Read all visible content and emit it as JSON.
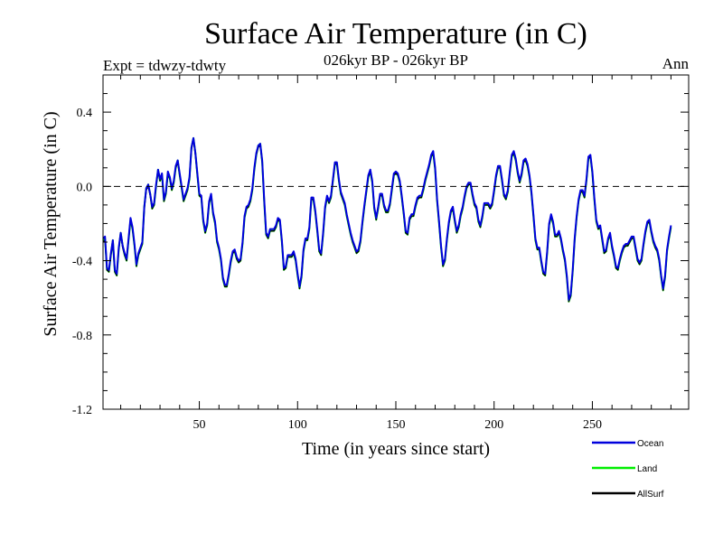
{
  "chart_data": {
    "type": "line",
    "title": "Surface Air Temperature (in C)",
    "subtitle_left": "Expt = tdwzy-tdwty",
    "subtitle_center": "026kyr BP - 026kyr BP",
    "subtitle_right": "Ann",
    "xlabel": "Time (in years since start)",
    "ylabel": "Surface Air Temperature (in C)",
    "xlim": [
      1,
      299
    ],
    "ylim": [
      -1.2,
      0.6
    ],
    "x_ticks": [
      50,
      100,
      150,
      200,
      250
    ],
    "y_ticks": [
      -1.2,
      -0.8,
      -0.4,
      0.0,
      0.4
    ],
    "y_tick_labels": [
      "-1.2",
      "-0.8",
      "-0.4",
      "0.0",
      "0.4"
    ],
    "reference_line": 0.0,
    "legend_position": "bottom-right",
    "series": [
      {
        "name": "Land",
        "color": "#00ee00",
        "x_start": 1,
        "x_step": 1,
        "values": [
          -0.29,
          -0.28,
          -0.45,
          -0.46,
          -0.37,
          -0.29,
          -0.46,
          -0.48,
          -0.34,
          -0.25,
          -0.32,
          -0.37,
          -0.4,
          -0.29,
          -0.18,
          -0.23,
          -0.32,
          -0.43,
          -0.37,
          -0.34,
          -0.31,
          -0.11,
          -0.01,
          0.01,
          -0.04,
          -0.12,
          -0.1,
          0.0,
          0.09,
          0.03,
          0.06,
          -0.08,
          -0.04,
          0.07,
          0.04,
          -0.02,
          0.02,
          0.1,
          0.14,
          0.06,
          -0.01,
          -0.08,
          -0.05,
          -0.02,
          0.04,
          0.21,
          0.26,
          0.18,
          0.06,
          -0.05,
          -0.06,
          -0.19,
          -0.25,
          -0.21,
          -0.09,
          -0.05,
          -0.15,
          -0.2,
          -0.3,
          -0.34,
          -0.4,
          -0.5,
          -0.54,
          -0.54,
          -0.48,
          -0.41,
          -0.36,
          -0.35,
          -0.39,
          -0.41,
          -0.4,
          -0.31,
          -0.17,
          -0.12,
          -0.11,
          -0.08,
          -0.02,
          0.09,
          0.17,
          0.22,
          0.23,
          0.13,
          -0.08,
          -0.26,
          -0.28,
          -0.24,
          -0.24,
          -0.24,
          -0.22,
          -0.18,
          -0.19,
          -0.3,
          -0.45,
          -0.44,
          -0.38,
          -0.38,
          -0.38,
          -0.36,
          -0.4,
          -0.48,
          -0.55,
          -0.49,
          -0.35,
          -0.29,
          -0.29,
          -0.23,
          -0.07,
          -0.07,
          -0.14,
          -0.24,
          -0.35,
          -0.37,
          -0.26,
          -0.12,
          -0.06,
          -0.09,
          -0.06,
          0.03,
          0.12,
          0.12,
          0.03,
          -0.04,
          -0.07,
          -0.1,
          -0.16,
          -0.21,
          -0.26,
          -0.3,
          -0.33,
          -0.36,
          -0.35,
          -0.3,
          -0.2,
          -0.11,
          -0.03,
          0.05,
          0.08,
          0.02,
          -0.12,
          -0.18,
          -0.12,
          -0.05,
          -0.05,
          -0.11,
          -0.14,
          -0.14,
          -0.1,
          -0.02,
          0.06,
          0.07,
          0.06,
          0.02,
          -0.06,
          -0.15,
          -0.25,
          -0.26,
          -0.18,
          -0.16,
          -0.16,
          -0.11,
          -0.07,
          -0.06,
          -0.06,
          -0.02,
          0.03,
          0.07,
          0.11,
          0.16,
          0.18,
          0.09,
          -0.08,
          -0.2,
          -0.33,
          -0.43,
          -0.4,
          -0.29,
          -0.2,
          -0.14,
          -0.12,
          -0.19,
          -0.25,
          -0.22,
          -0.16,
          -0.12,
          -0.06,
          -0.01,
          0.01,
          0.01,
          -0.05,
          -0.1,
          -0.12,
          -0.19,
          -0.22,
          -0.17,
          -0.1,
          -0.1,
          -0.1,
          -0.12,
          -0.1,
          -0.03,
          0.05,
          0.1,
          0.1,
          0.03,
          -0.05,
          -0.07,
          -0.03,
          0.07,
          0.16,
          0.18,
          0.14,
          0.07,
          0.02,
          0.06,
          0.13,
          0.14,
          0.11,
          0.05,
          -0.04,
          -0.16,
          -0.29,
          -0.34,
          -0.34,
          -0.41,
          -0.47,
          -0.48,
          -0.36,
          -0.21,
          -0.16,
          -0.2,
          -0.27,
          -0.27,
          -0.25,
          -0.29,
          -0.35,
          -0.4,
          -0.49,
          -0.62,
          -0.59,
          -0.46,
          -0.29,
          -0.17,
          -0.08,
          -0.03,
          -0.03,
          -0.06,
          0.03,
          0.15,
          0.16,
          0.07,
          -0.07,
          -0.19,
          -0.23,
          -0.22,
          -0.29,
          -0.36,
          -0.35,
          -0.29,
          -0.26,
          -0.33,
          -0.38,
          -0.44,
          -0.45,
          -0.4,
          -0.36,
          -0.33,
          -0.32,
          -0.32,
          -0.3,
          -0.28,
          -0.28,
          -0.34,
          -0.4,
          -0.42,
          -0.4,
          -0.32,
          -0.25,
          -0.2,
          -0.19,
          -0.25,
          -0.3,
          -0.33,
          -0.35,
          -0.4,
          -0.49,
          -0.56,
          -0.49,
          -0.35,
          -0.28,
          -0.22
        ]
      },
      {
        "name": "AllSurf",
        "color": "#000000",
        "x_start": 1,
        "x_step": 1,
        "values": [
          -0.3,
          -0.29,
          -0.45,
          -0.46,
          -0.37,
          -0.3,
          -0.46,
          -0.48,
          -0.34,
          -0.26,
          -0.33,
          -0.37,
          -0.4,
          -0.29,
          -0.18,
          -0.23,
          -0.32,
          -0.43,
          -0.37,
          -0.34,
          -0.31,
          -0.12,
          -0.02,
          0.0,
          -0.05,
          -0.12,
          -0.1,
          0.0,
          0.08,
          0.03,
          0.06,
          -0.08,
          -0.04,
          0.07,
          0.04,
          -0.02,
          0.02,
          0.1,
          0.13,
          0.06,
          -0.01,
          -0.08,
          -0.05,
          -0.02,
          0.04,
          0.2,
          0.25,
          0.17,
          0.06,
          -0.05,
          -0.06,
          -0.19,
          -0.25,
          -0.21,
          -0.09,
          -0.05,
          -0.15,
          -0.2,
          -0.3,
          -0.34,
          -0.4,
          -0.5,
          -0.54,
          -0.54,
          -0.48,
          -0.41,
          -0.36,
          -0.35,
          -0.39,
          -0.41,
          -0.4,
          -0.31,
          -0.17,
          -0.12,
          -0.11,
          -0.08,
          -0.02,
          0.09,
          0.17,
          0.21,
          0.22,
          0.13,
          -0.08,
          -0.26,
          -0.28,
          -0.24,
          -0.24,
          -0.24,
          -0.22,
          -0.18,
          -0.19,
          -0.3,
          -0.45,
          -0.44,
          -0.38,
          -0.38,
          -0.38,
          -0.36,
          -0.4,
          -0.48,
          -0.55,
          -0.49,
          -0.35,
          -0.29,
          -0.29,
          -0.23,
          -0.07,
          -0.07,
          -0.14,
          -0.24,
          -0.35,
          -0.37,
          -0.26,
          -0.12,
          -0.06,
          -0.09,
          -0.06,
          0.03,
          0.12,
          0.12,
          0.03,
          -0.04,
          -0.07,
          -0.1,
          -0.16,
          -0.21,
          -0.26,
          -0.3,
          -0.33,
          -0.36,
          -0.35,
          -0.3,
          -0.2,
          -0.11,
          -0.03,
          0.05,
          0.08,
          0.02,
          -0.12,
          -0.18,
          -0.12,
          -0.05,
          -0.05,
          -0.11,
          -0.14,
          -0.14,
          -0.1,
          -0.02,
          0.06,
          0.07,
          0.06,
          0.02,
          -0.06,
          -0.15,
          -0.25,
          -0.26,
          -0.18,
          -0.16,
          -0.16,
          -0.11,
          -0.07,
          -0.06,
          -0.06,
          -0.02,
          0.03,
          0.07,
          0.11,
          0.16,
          0.18,
          0.09,
          -0.08,
          -0.2,
          -0.33,
          -0.43,
          -0.4,
          -0.29,
          -0.2,
          -0.14,
          -0.12,
          -0.19,
          -0.25,
          -0.22,
          -0.16,
          -0.12,
          -0.06,
          -0.01,
          0.01,
          0.01,
          -0.05,
          -0.1,
          -0.12,
          -0.19,
          -0.22,
          -0.17,
          -0.1,
          -0.1,
          -0.1,
          -0.12,
          -0.1,
          -0.03,
          0.05,
          0.1,
          0.1,
          0.03,
          -0.05,
          -0.07,
          -0.03,
          0.07,
          0.16,
          0.18,
          0.14,
          0.07,
          0.02,
          0.06,
          0.13,
          0.14,
          0.11,
          0.05,
          -0.04,
          -0.16,
          -0.29,
          -0.34,
          -0.34,
          -0.41,
          -0.47,
          -0.48,
          -0.36,
          -0.21,
          -0.16,
          -0.2,
          -0.27,
          -0.27,
          -0.25,
          -0.29,
          -0.35,
          -0.4,
          -0.49,
          -0.62,
          -0.59,
          -0.46,
          -0.29,
          -0.17,
          -0.08,
          -0.03,
          -0.03,
          -0.06,
          0.03,
          0.15,
          0.16,
          0.07,
          -0.07,
          -0.19,
          -0.23,
          -0.22,
          -0.29,
          -0.36,
          -0.35,
          -0.29,
          -0.26,
          -0.33,
          -0.38,
          -0.44,
          -0.45,
          -0.4,
          -0.36,
          -0.33,
          -0.32,
          -0.32,
          -0.3,
          -0.28,
          -0.28,
          -0.34,
          -0.4,
          -0.42,
          -0.4,
          -0.32,
          -0.25,
          -0.2,
          -0.19,
          -0.25,
          -0.3,
          -0.33,
          -0.35,
          -0.4,
          -0.49,
          -0.56,
          -0.49,
          -0.35,
          -0.28,
          -0.22
        ]
      },
      {
        "name": "Ocean",
        "color": "#0000dd",
        "x_start": 1,
        "x_step": 1,
        "values": [
          -0.28,
          -0.27,
          -0.44,
          -0.45,
          -0.36,
          -0.29,
          -0.45,
          -0.47,
          -0.33,
          -0.25,
          -0.32,
          -0.36,
          -0.39,
          -0.28,
          -0.17,
          -0.22,
          -0.31,
          -0.42,
          -0.36,
          -0.33,
          -0.3,
          -0.11,
          -0.01,
          0.01,
          -0.04,
          -0.11,
          -0.09,
          0.01,
          0.09,
          0.04,
          0.07,
          -0.07,
          -0.03,
          0.08,
          0.05,
          -0.01,
          0.03,
          0.11,
          0.14,
          0.07,
          0.0,
          -0.07,
          -0.04,
          -0.01,
          0.05,
          0.21,
          0.26,
          0.18,
          0.07,
          -0.04,
          -0.05,
          -0.18,
          -0.24,
          -0.2,
          -0.08,
          -0.04,
          -0.14,
          -0.19,
          -0.29,
          -0.33,
          -0.39,
          -0.49,
          -0.53,
          -0.53,
          -0.47,
          -0.4,
          -0.35,
          -0.34,
          -0.38,
          -0.4,
          -0.39,
          -0.3,
          -0.16,
          -0.11,
          -0.1,
          -0.07,
          -0.01,
          0.1,
          0.18,
          0.22,
          0.23,
          0.14,
          -0.07,
          -0.25,
          -0.27,
          -0.23,
          -0.23,
          -0.23,
          -0.21,
          -0.17,
          -0.18,
          -0.29,
          -0.44,
          -0.43,
          -0.37,
          -0.37,
          -0.37,
          -0.35,
          -0.39,
          -0.47,
          -0.54,
          -0.48,
          -0.34,
          -0.28,
          -0.28,
          -0.22,
          -0.06,
          -0.06,
          -0.13,
          -0.23,
          -0.34,
          -0.36,
          -0.25,
          -0.11,
          -0.05,
          -0.08,
          -0.05,
          0.04,
          0.13,
          0.13,
          0.04,
          -0.03,
          -0.06,
          -0.09,
          -0.15,
          -0.2,
          -0.25,
          -0.29,
          -0.32,
          -0.35,
          -0.34,
          -0.29,
          -0.19,
          -0.1,
          -0.02,
          0.06,
          0.09,
          0.03,
          -0.11,
          -0.17,
          -0.11,
          -0.04,
          -0.04,
          -0.1,
          -0.13,
          -0.13,
          -0.09,
          -0.01,
          0.07,
          0.08,
          0.07,
          0.03,
          -0.05,
          -0.14,
          -0.24,
          -0.25,
          -0.17,
          -0.15,
          -0.15,
          -0.1,
          -0.06,
          -0.05,
          -0.05,
          -0.01,
          0.04,
          0.08,
          0.12,
          0.17,
          0.19,
          0.1,
          -0.07,
          -0.19,
          -0.32,
          -0.42,
          -0.39,
          -0.28,
          -0.19,
          -0.13,
          -0.11,
          -0.18,
          -0.24,
          -0.21,
          -0.15,
          -0.11,
          -0.05,
          0.0,
          0.02,
          0.02,
          -0.04,
          -0.09,
          -0.11,
          -0.18,
          -0.21,
          -0.16,
          -0.09,
          -0.09,
          -0.09,
          -0.11,
          -0.09,
          -0.02,
          0.06,
          0.11,
          0.11,
          0.04,
          -0.04,
          -0.06,
          -0.02,
          0.08,
          0.17,
          0.19,
          0.15,
          0.08,
          0.03,
          0.07,
          0.14,
          0.15,
          0.12,
          0.06,
          -0.03,
          -0.15,
          -0.28,
          -0.33,
          -0.33,
          -0.4,
          -0.46,
          -0.47,
          -0.35,
          -0.2,
          -0.15,
          -0.19,
          -0.26,
          -0.26,
          -0.24,
          -0.28,
          -0.34,
          -0.39,
          -0.48,
          -0.61,
          -0.58,
          -0.45,
          -0.28,
          -0.16,
          -0.07,
          -0.02,
          -0.02,
          -0.05,
          0.04,
          0.16,
          0.17,
          0.08,
          -0.06,
          -0.18,
          -0.22,
          -0.21,
          -0.28,
          -0.35,
          -0.34,
          -0.28,
          -0.25,
          -0.32,
          -0.37,
          -0.43,
          -0.44,
          -0.39,
          -0.35,
          -0.32,
          -0.31,
          -0.31,
          -0.29,
          -0.27,
          -0.27,
          -0.33,
          -0.39,
          -0.41,
          -0.39,
          -0.31,
          -0.24,
          -0.19,
          -0.18,
          -0.24,
          -0.29,
          -0.32,
          -0.34,
          -0.39,
          -0.48,
          -0.55,
          -0.48,
          -0.34,
          -0.27,
          -0.21
        ]
      }
    ],
    "legend": [
      {
        "label": "Ocean",
        "color": "#0000dd"
      },
      {
        "label": "Land",
        "color": "#00ee00"
      },
      {
        "label": "AllSurf",
        "color": "#000000"
      }
    ]
  }
}
